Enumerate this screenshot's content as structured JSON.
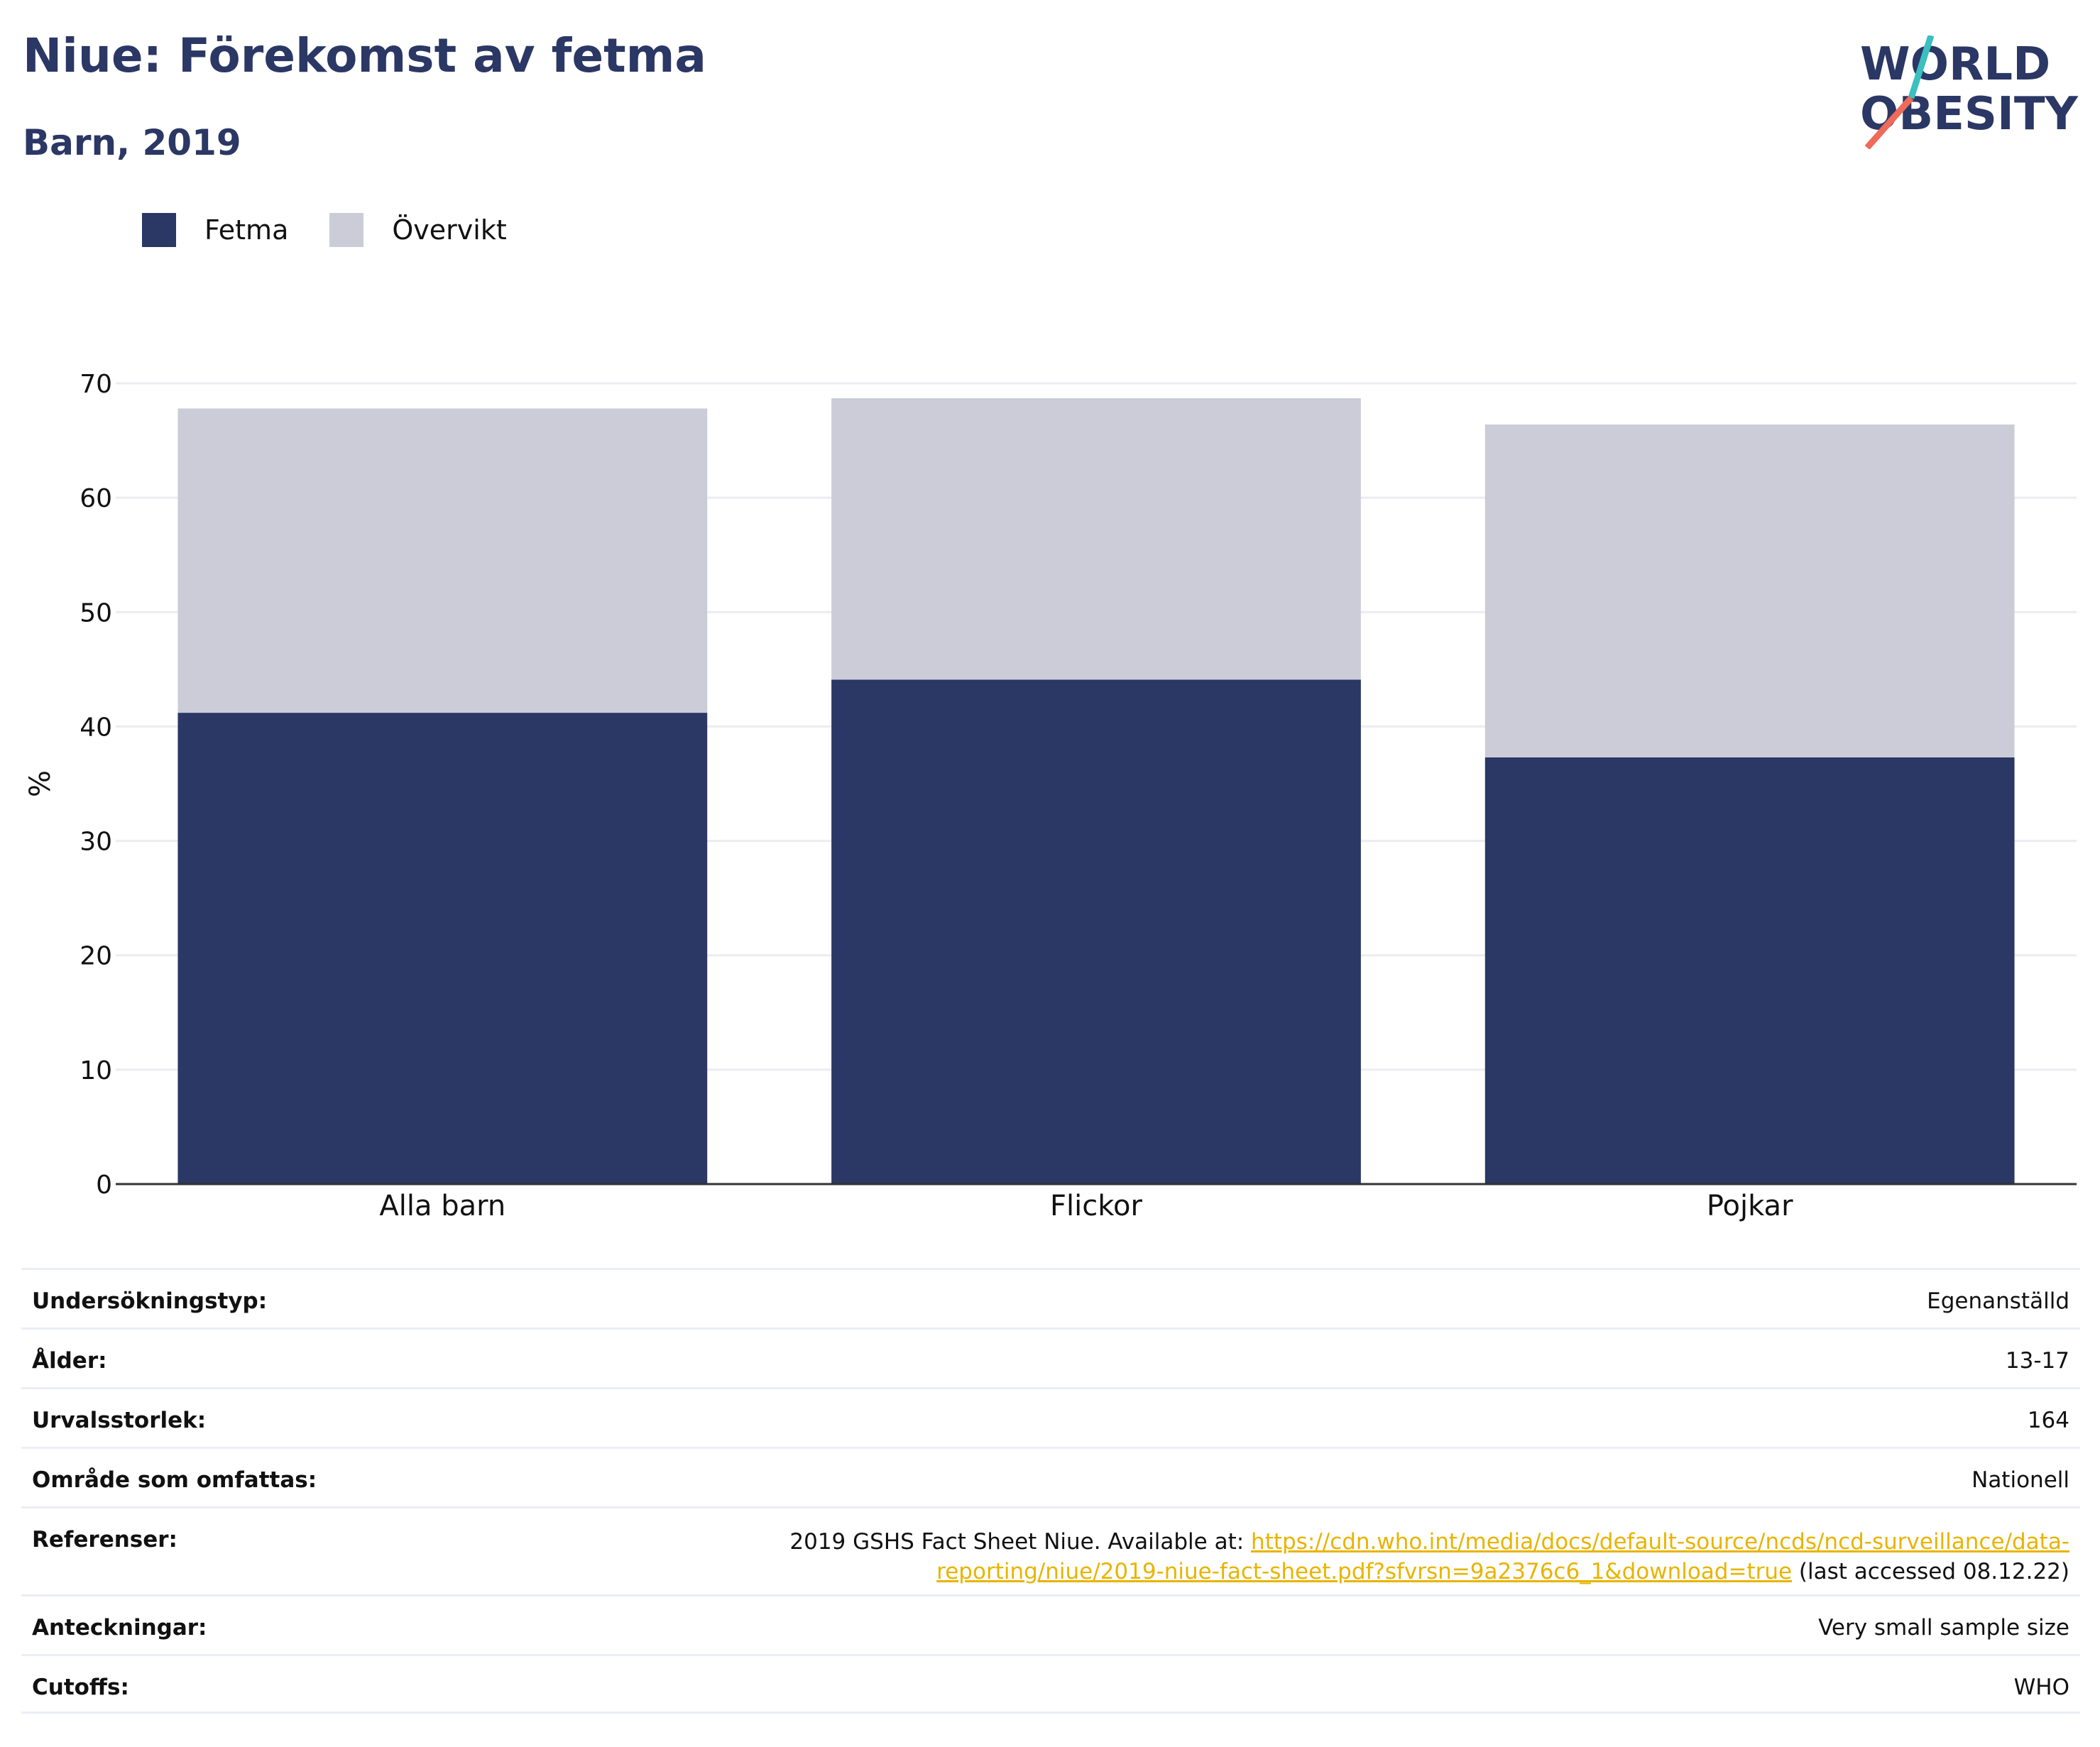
{
  "title": "Niue: Förekomst av fetma",
  "subtitle": "Barn, 2019",
  "logo": {
    "line1": "WORLD",
    "line2": "OBESITY"
  },
  "legend": [
    {
      "label": "Fetma",
      "color": "#2b3764"
    },
    {
      "label": "Övervikt",
      "color": "#cbccd8"
    }
  ],
  "chart_data": {
    "type": "bar",
    "stacked": true,
    "categories": [
      "Alla barn",
      "Flickor",
      "Pojkar"
    ],
    "series": [
      {
        "name": "Fetma",
        "values": [
          41.2,
          44.1,
          37.3
        ],
        "color": "#2b3764"
      },
      {
        "name": "Övervikt",
        "values": [
          26.6,
          24.6,
          29.1
        ],
        "color": "#cbccd8"
      }
    ],
    "ylabel": "%",
    "ylim": [
      0,
      70
    ],
    "yticks": [
      0,
      10,
      20,
      30,
      40,
      50,
      60,
      70
    ],
    "grid": true,
    "legend_position": "top-left"
  },
  "meta": {
    "survey_type": {
      "label": "Undersökningstyp:",
      "value": "Egenanställd"
    },
    "age": {
      "label": "Ålder:",
      "value": "13-17"
    },
    "sample_size": {
      "label": "Urvalsstorlek:",
      "value": "164"
    },
    "area": {
      "label": "Område som omfattas:",
      "value": "Nationell"
    },
    "references": {
      "label": "Referenser:",
      "prefix": "2019 GSHS Fact Sheet Niue. Available at: ",
      "link_line1": "https://cdn.who.int/media/docs/default-source/ncds/ncd-surveillance/data-",
      "link_line2": "reporting/niue/2019-niue-fact-sheet.pdf?sfvrsn=9a2376c6_1&download=true",
      "suffix": " (last accessed 08.12.22)"
    },
    "notes": {
      "label": "Anteckningar:",
      "value": "Very small sample size"
    },
    "cutoffs": {
      "label": "Cutoffs:",
      "value": "WHO"
    }
  }
}
